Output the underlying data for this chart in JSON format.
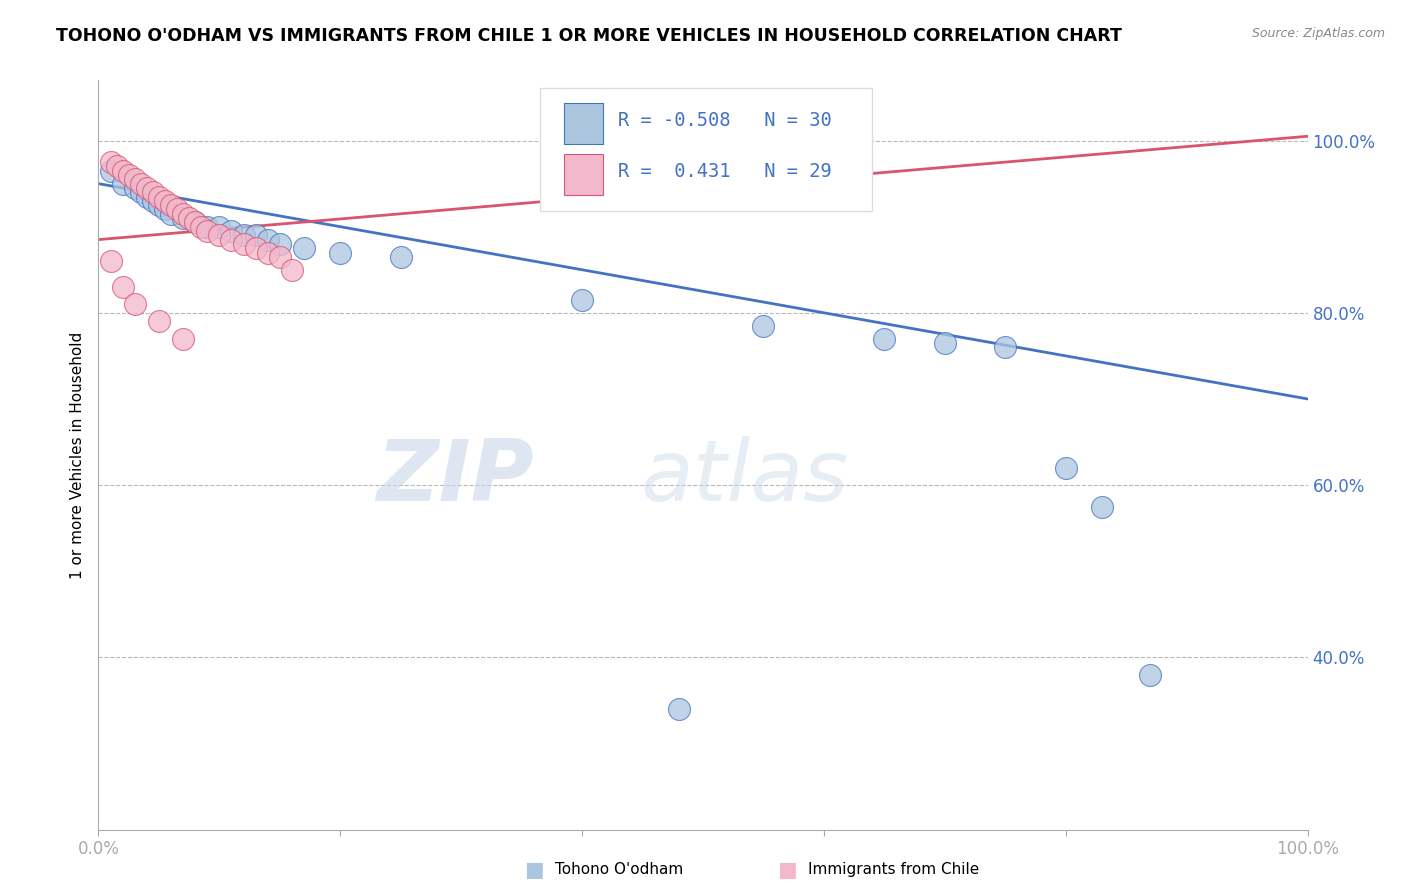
{
  "title": "TOHONO O'ODHAM VS IMMIGRANTS FROM CHILE 1 OR MORE VEHICLES IN HOUSEHOLD CORRELATION CHART",
  "source": "Source: ZipAtlas.com",
  "ylabel": "1 or more Vehicles in Household",
  "R_blue": -0.508,
  "N_blue": 30,
  "R_pink": 0.431,
  "N_pink": 29,
  "blue_color": "#adc6e0",
  "pink_color": "#f2b8cb",
  "blue_line_color": "#4472c4",
  "pink_line_color": "#d9546e",
  "legend_label1": "Tohono O'odham",
  "legend_label2": "Immigrants from Chile",
  "blue_points": [
    [
      1.0,
      96.5
    ],
    [
      2.0,
      95.0
    ],
    [
      3.0,
      94.5
    ],
    [
      3.5,
      94.0
    ],
    [
      4.0,
      93.5
    ],
    [
      4.5,
      93.0
    ],
    [
      5.0,
      92.5
    ],
    [
      5.5,
      92.0
    ],
    [
      6.0,
      91.5
    ],
    [
      7.0,
      91.0
    ],
    [
      8.0,
      90.5
    ],
    [
      9.0,
      90.0
    ],
    [
      10.0,
      90.0
    ],
    [
      11.0,
      89.5
    ],
    [
      12.0,
      89.0
    ],
    [
      13.0,
      89.0
    ],
    [
      14.0,
      88.5
    ],
    [
      15.0,
      88.0
    ],
    [
      17.0,
      87.5
    ],
    [
      20.0,
      87.0
    ],
    [
      25.0,
      86.5
    ],
    [
      40.0,
      81.5
    ],
    [
      55.0,
      78.5
    ],
    [
      65.0,
      77.0
    ],
    [
      70.0,
      76.5
    ],
    [
      75.0,
      76.0
    ],
    [
      80.0,
      62.0
    ],
    [
      83.0,
      57.5
    ],
    [
      87.0,
      38.0
    ],
    [
      48.0,
      34.0
    ]
  ],
  "pink_points": [
    [
      1.0,
      97.5
    ],
    [
      1.5,
      97.0
    ],
    [
      2.0,
      96.5
    ],
    [
      2.5,
      96.0
    ],
    [
      3.0,
      95.5
    ],
    [
      3.5,
      95.0
    ],
    [
      4.0,
      94.5
    ],
    [
      4.5,
      94.0
    ],
    [
      5.0,
      93.5
    ],
    [
      5.5,
      93.0
    ],
    [
      6.0,
      92.5
    ],
    [
      6.5,
      92.0
    ],
    [
      7.0,
      91.5
    ],
    [
      7.5,
      91.0
    ],
    [
      8.0,
      90.5
    ],
    [
      8.5,
      90.0
    ],
    [
      9.0,
      89.5
    ],
    [
      10.0,
      89.0
    ],
    [
      11.0,
      88.5
    ],
    [
      12.0,
      88.0
    ],
    [
      13.0,
      87.5
    ],
    [
      14.0,
      87.0
    ],
    [
      15.0,
      86.5
    ],
    [
      16.0,
      85.0
    ],
    [
      1.0,
      86.0
    ],
    [
      2.0,
      83.0
    ],
    [
      3.0,
      81.0
    ],
    [
      5.0,
      79.0
    ],
    [
      7.0,
      77.0
    ]
  ]
}
